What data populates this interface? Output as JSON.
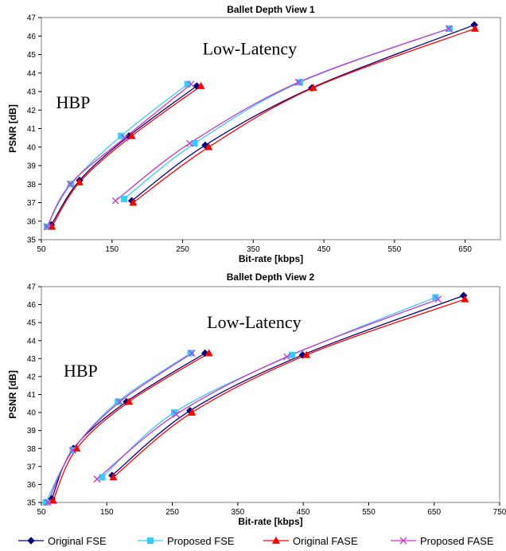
{
  "colors": {
    "original_fse": "#00007f",
    "proposed_fse": "#33ccff",
    "original_fase": "#ff0000",
    "proposed_fase": "#cc33cc"
  },
  "legend": [
    {
      "key": "original_fse",
      "label": "Original FSE",
      "marker": "diamond"
    },
    {
      "key": "proposed_fse",
      "label": "Proposed FSE",
      "marker": "square"
    },
    {
      "key": "original_fase",
      "label": "Original FASE",
      "marker": "triangle"
    },
    {
      "key": "proposed_fase",
      "label": "Proposed FASE",
      "marker": "x"
    }
  ],
  "chart_data": [
    {
      "type": "line",
      "title": "Ballet Depth View 1",
      "xlabel": "Bit-rate [kbps]",
      "ylabel": "PSNR [dB]",
      "xlim": [
        50,
        700
      ],
      "ylim": [
        35,
        47
      ],
      "xticks": [
        50,
        150,
        250,
        350,
        450,
        550,
        650
      ],
      "yticks": [
        35,
        36,
        37,
        38,
        39,
        40,
        41,
        42,
        43,
        44,
        45,
        46,
        47
      ],
      "grid": false,
      "annotations": [
        {
          "text": "HBP",
          "x": 95,
          "y": 42.1
        },
        {
          "text": "Low-Latency",
          "x": 345,
          "y": 45.0
        }
      ],
      "series": [
        {
          "key": "original_fse",
          "group": "HBP",
          "x": [
            64,
            104,
            174,
            270
          ],
          "y": [
            35.8,
            38.2,
            40.6,
            43.3
          ]
        },
        {
          "key": "proposed_fse",
          "group": "HBP",
          "x": [
            58,
            92,
            163,
            257
          ],
          "y": [
            35.7,
            38.0,
            40.6,
            43.4
          ]
        },
        {
          "key": "original_fase",
          "group": "HBP",
          "x": [
            65,
            104,
            178,
            276
          ],
          "y": [
            35.7,
            38.1,
            40.6,
            43.3
          ]
        },
        {
          "key": "proposed_fase",
          "group": "HBP",
          "x": [
            58,
            91,
            168,
            262
          ],
          "y": [
            35.7,
            38.0,
            40.5,
            43.4
          ]
        },
        {
          "key": "original_fse",
          "group": "Low-Latency",
          "x": [
            178,
            282,
            433,
            663
          ],
          "y": [
            37.1,
            40.1,
            43.2,
            46.6
          ]
        },
        {
          "key": "proposed_fse",
          "group": "Low-Latency",
          "x": [
            167,
            267,
            416,
            628
          ],
          "y": [
            37.2,
            40.2,
            43.5,
            46.4
          ]
        },
        {
          "key": "original_fase",
          "group": "Low-Latency",
          "x": [
            180,
            287,
            435,
            664
          ],
          "y": [
            37.0,
            40.0,
            43.2,
            46.4
          ]
        },
        {
          "key": "proposed_fase",
          "group": "Low-Latency",
          "x": [
            155,
            260,
            414,
            627
          ],
          "y": [
            37.1,
            40.2,
            43.5,
            46.4
          ]
        }
      ]
    },
    {
      "type": "line",
      "title": "Ballet Depth View 2",
      "xlabel": "Bit-rate [kbps]",
      "ylabel": "PSNR [dB]",
      "xlim": [
        50,
        750
      ],
      "ylim": [
        35,
        47
      ],
      "xticks": [
        50,
        150,
        250,
        350,
        450,
        550,
        650,
        750
      ],
      "yticks": [
        35,
        36,
        37,
        38,
        39,
        40,
        41,
        42,
        43,
        44,
        45,
        46,
        47
      ],
      "grid": false,
      "annotations": [
        {
          "text": "HBP",
          "x": 110,
          "y": 42.0
        },
        {
          "text": "Low-Latency",
          "x": 375,
          "y": 44.7
        }
      ],
      "series": [
        {
          "key": "original_fse",
          "group": "HBP",
          "x": [
            66,
            99,
            180,
            300
          ],
          "y": [
            35.2,
            38.0,
            40.6,
            43.3
          ]
        },
        {
          "key": "proposed_fse",
          "group": "HBP",
          "x": [
            57,
            98,
            167,
            278
          ],
          "y": [
            35.0,
            37.9,
            40.6,
            43.3
          ]
        },
        {
          "key": "original_fase",
          "group": "HBP",
          "x": [
            68,
            104,
            184,
            306
          ],
          "y": [
            35.1,
            38.0,
            40.6,
            43.3
          ]
        },
        {
          "key": "proposed_fase",
          "group": "HBP",
          "x": [
            60,
            98,
            170,
            280
          ],
          "y": [
            35.0,
            37.9,
            40.6,
            43.3
          ]
        },
        {
          "key": "original_fse",
          "group": "Low-Latency",
          "x": [
            158,
            277,
            449,
            695
          ],
          "y": [
            36.5,
            40.1,
            43.2,
            46.5
          ]
        },
        {
          "key": "proposed_fse",
          "group": "Low-Latency",
          "x": [
            143,
            253,
            433,
            652
          ],
          "y": [
            36.4,
            40.0,
            43.2,
            46.4
          ]
        },
        {
          "key": "original_fase",
          "group": "Low-Latency",
          "x": [
            160,
            280,
            455,
            697
          ],
          "y": [
            36.4,
            40.0,
            43.2,
            46.3
          ]
        },
        {
          "key": "proposed_fase",
          "group": "Low-Latency",
          "x": [
            135,
            256,
            425,
            656
          ],
          "y": [
            36.3,
            39.9,
            43.1,
            46.3
          ]
        }
      ]
    }
  ]
}
